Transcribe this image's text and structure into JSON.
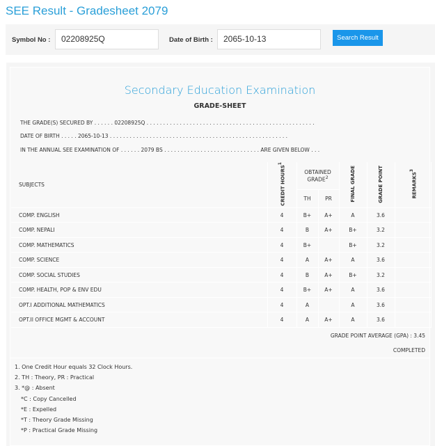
{
  "page_title": "SEE Result - Gradesheet 2079",
  "search": {
    "symbol_label": "Symbol No :",
    "symbol_value": "02208925Q",
    "dob_label": "Date of Birth :",
    "dob_value": "2065-10-13",
    "button": "Search Result"
  },
  "sheet": {
    "exam_title": "Secondary Education Examination",
    "subtitle": "GRADE-SHEET",
    "lines": [
      "THE GRADE(S) SECURED BY . . . . . . 02208925Q . . . . . . . . . . . . . . . . . . . . . . . . . . . . . . . . . . . . . . . . . . . . . . . . . . .",
      "DATE OF BIRTH . . . . . 2065-10-13 . . . . . . . . . . . . . . . . . . . . . . . . . . . . . . . . . . . . . . . . . . . . . . . . . . . . . .",
      "IN THE ANNUAL SEE EXAMINATION OF . . . . . . 2079 BS . . . . . . . . . . . . . . . . . . . . . . . . . . . . . ARE GIVEN BELOW . . ."
    ],
    "headers": {
      "subjects": "SUBJECTS",
      "credit": "CREDIT HOURS",
      "credit_sup": "1",
      "obtained": "OBTAINED GRADE",
      "obtained_sup": "2",
      "th": "TH",
      "pr": "PR",
      "final": "FINAL GRADE",
      "gp": "GRADE POINT",
      "remarks": "REMARKS",
      "remarks_sup": "3"
    },
    "rows": [
      {
        "subject": "COMP. ENGLISH",
        "credit": "4",
        "th": "B+",
        "pr": "A+",
        "final": "A",
        "gp": "3.6",
        "remarks": ""
      },
      {
        "subject": "COMP. NEPALI",
        "credit": "4",
        "th": "B",
        "pr": "A+",
        "final": "B+",
        "gp": "3.2",
        "remarks": ""
      },
      {
        "subject": "COMP. MATHEMATICS",
        "credit": "4",
        "th": "B+",
        "pr": "",
        "final": "B+",
        "gp": "3.2",
        "remarks": ""
      },
      {
        "subject": "COMP. SCIENCE",
        "credit": "4",
        "th": "A",
        "pr": "A+",
        "final": "A",
        "gp": "3.6",
        "remarks": ""
      },
      {
        "subject": "COMP. SOCIAL STUDIES",
        "credit": "4",
        "th": "B",
        "pr": "A+",
        "final": "B+",
        "gp": "3.2",
        "remarks": ""
      },
      {
        "subject": "COMP. HEALTH, POP & ENV EDU",
        "credit": "4",
        "th": "B+",
        "pr": "A+",
        "final": "A",
        "gp": "3.6",
        "remarks": ""
      },
      {
        "subject": "OPT.I ADDITIONAL MATHEMATICS",
        "credit": "4",
        "th": "A",
        "pr": "",
        "final": "A",
        "gp": "3.6",
        "remarks": ""
      },
      {
        "subject": "OPT.II OFFICE MGMT & ACCOUNT",
        "credit": "4",
        "th": "A",
        "pr": "A+",
        "final": "A",
        "gp": "3.6",
        "remarks": ""
      }
    ],
    "gpa": "GRADE POINT AVERAGE (GPA) : 3.45",
    "status": "COMPLETED",
    "notes": [
      "1. One Credit Hour equals 32 Clock Hours.",
      "2. TH : Theory, PR : Practical",
      "3. *@ : Absent",
      "*C : Copy Cancelled",
      "*E : Expelled",
      "*T : Theory Grade Missing",
      "*P : Practical Grade Missing"
    ]
  }
}
